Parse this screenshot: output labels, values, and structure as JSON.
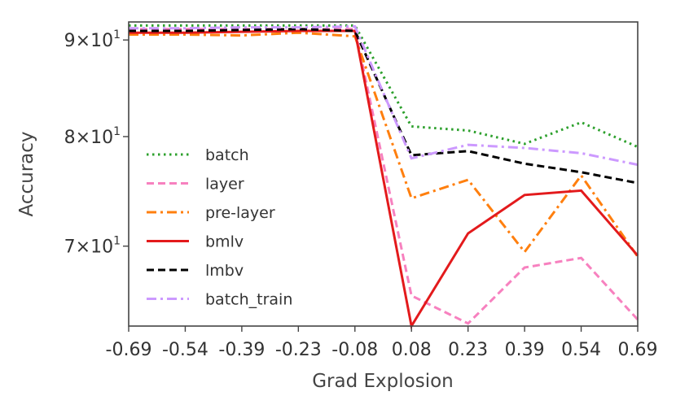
{
  "chart_data": {
    "type": "line",
    "title": "",
    "xlabel": "Grad Explosion",
    "ylabel": "Accuracy",
    "x": [
      -0.69,
      -0.54,
      -0.39,
      -0.23,
      -0.08,
      0.08,
      0.23,
      0.39,
      0.54,
      0.69
    ],
    "x_tick_labels": [
      "-0.69",
      "-0.54",
      "-0.39",
      "-0.23",
      "-0.08",
      "0.08",
      "0.23",
      "0.39",
      "0.54",
      "0.69"
    ],
    "y_scale": "log",
    "ylim": [
      63.5,
      92.0
    ],
    "y_ticks": [
      {
        "value": 90,
        "mantissa": "9",
        "base": "10",
        "exp": "1"
      },
      {
        "value": 80,
        "mantissa": "8",
        "base": "10",
        "exp": "1"
      },
      {
        "value": 70,
        "mantissa": "7",
        "base": "10",
        "exp": "1"
      }
    ],
    "grid": false,
    "legend_position": "center-left",
    "series": [
      {
        "name": "batch",
        "color": "#2ca02c",
        "dash": "dotted",
        "values": [
          91.6,
          91.6,
          91.6,
          91.6,
          91.6,
          81.0,
          80.6,
          79.3,
          81.4,
          79.0
        ]
      },
      {
        "name": "layer",
        "color": "#f781bf",
        "dash": "dashed",
        "values": [
          91.2,
          91.2,
          91.2,
          91.2,
          91.2,
          65.9,
          63.7,
          68.2,
          69.0,
          64.0
        ]
      },
      {
        "name": "pre-layer",
        "color": "#ff7f0e",
        "dash": "dashdot",
        "values": [
          90.6,
          90.6,
          90.5,
          90.8,
          90.4,
          74.2,
          75.9,
          69.5,
          76.3,
          69.1
        ]
      },
      {
        "name": "bmlv",
        "color": "#e31a1c",
        "dash": "solid",
        "values": [
          90.8,
          90.8,
          90.9,
          91.0,
          91.0,
          63.5,
          71.1,
          74.5,
          74.9,
          69.2
        ]
      },
      {
        "name": "lmbv",
        "color": "#000000",
        "dash": "dashed",
        "values": [
          91.0,
          91.0,
          91.1,
          91.2,
          91.0,
          78.2,
          78.6,
          77.4,
          76.6,
          75.6
        ]
      },
      {
        "name": "batch_train",
        "color": "#cc99ff",
        "dash": "dashdot",
        "values": [
          91.3,
          91.3,
          91.4,
          91.4,
          91.5,
          77.9,
          79.2,
          78.9,
          78.4,
          77.3
        ]
      }
    ]
  }
}
